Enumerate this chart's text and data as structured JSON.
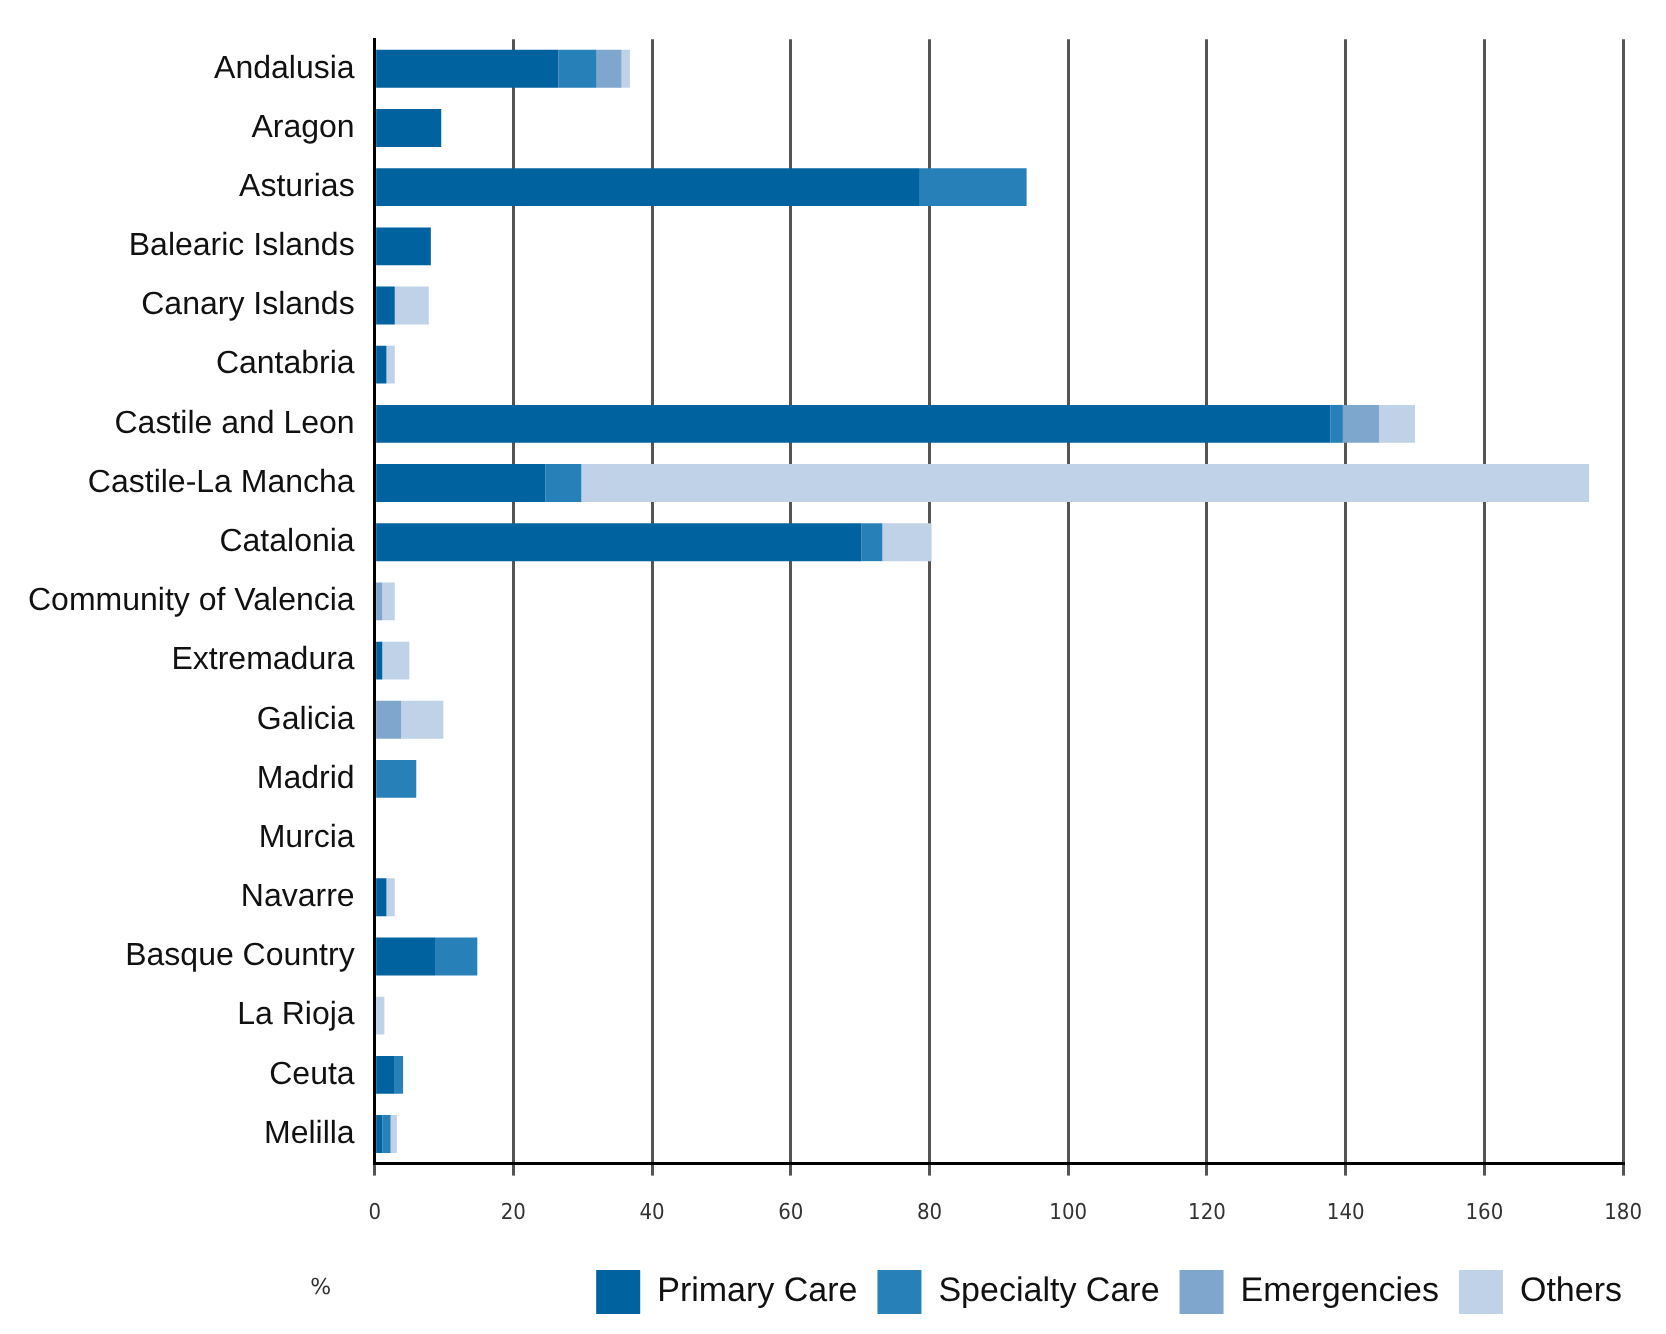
{
  "chart_data": {
    "type": "bar",
    "orientation": "horizontal",
    "stacked": true,
    "xlabel": "%",
    "categories": [
      "Andalusia",
      "Aragon",
      "Asturias",
      "Balearic Islands",
      "Canary Islands",
      "Cantabria",
      "Castile and Leon",
      "Castile-La Mancha",
      "Catalonia",
      "Community of Valencia",
      "Extremadura",
      "Galicia",
      "Madrid",
      "Murcia",
      "Navarre",
      "Basque Country",
      "La Rioja",
      "Ceuta",
      "Melilla"
    ],
    "series": [
      {
        "name": "Primary Care",
        "color": "#0063a0",
        "values": [
          26.5,
          9.6,
          78.6,
          8.1,
          2.9,
          1.7,
          137.8,
          24.6,
          70.2,
          0,
          1.1,
          0,
          0,
          0,
          1.7,
          8.7,
          0,
          2.9,
          1.1
        ]
      },
      {
        "name": "Specialty Care",
        "color": "#2880b9",
        "values": [
          5.5,
          0,
          15.4,
          0,
          0,
          0,
          1.8,
          5.2,
          3,
          0,
          0,
          0,
          6,
          0,
          0,
          6.1,
          0,
          1.2,
          1.2
        ]
      },
      {
        "name": "Emergencies",
        "color": "#7fa6cd",
        "values": [
          3.6,
          0,
          0,
          0,
          0,
          0,
          5.2,
          0,
          0,
          1.1,
          0,
          3.8,
          0,
          0,
          0,
          0,
          0,
          0,
          0
        ]
      },
      {
        "name": "Others",
        "color": "#c0d2e7",
        "values": [
          1.2,
          0,
          0,
          0,
          4.9,
          1.2,
          5.2,
          145.3,
          7.1,
          1.8,
          3.9,
          6.1,
          0,
          0,
          1.2,
          0,
          1.4,
          0,
          0.9
        ]
      }
    ],
    "xlim": [
      0,
      180
    ],
    "xticks": [
      0,
      20,
      40,
      60,
      80,
      100,
      120,
      140,
      160,
      180
    ],
    "grid": "x",
    "legend": "bottom right"
  }
}
